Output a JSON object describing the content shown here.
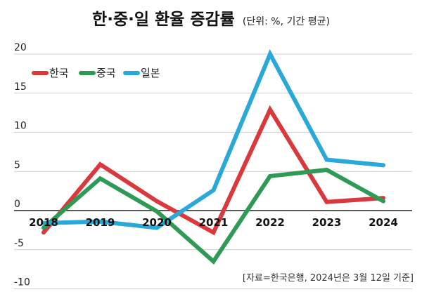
{
  "chart_data": {
    "type": "line",
    "title": "한·중·일 환율 증감률",
    "subtitle": "(단위: %, 기간 평균)",
    "source": "[자료=한국은행, 2024년은 3월 12일 기준]",
    "x": [
      "2018",
      "2019",
      "2020",
      "2021",
      "2022",
      "2023",
      "2024"
    ],
    "ylim": [
      -10,
      20
    ],
    "yticks": [
      20,
      15,
      10,
      5,
      0,
      -5,
      -10
    ],
    "ytick_labels": [
      "20",
      "15",
      "10",
      "5",
      "0",
      "-5",
      "-10"
    ],
    "grid": true,
    "legend_position": "top-left",
    "series": [
      {
        "name": "한국",
        "color": "#d9393c",
        "values": [
          -2.8,
          5.9,
          1.2,
          -2.8,
          12.9,
          1.1,
          1.6
        ]
      },
      {
        "name": "중국",
        "color": "#2f9a55",
        "values": [
          -2.2,
          4.1,
          -0.1,
          -6.5,
          4.4,
          5.2,
          1.2
        ]
      },
      {
        "name": "일본",
        "color": "#2aa8d8",
        "values": [
          -1.6,
          -1.4,
          -2.2,
          2.6,
          20.0,
          6.5,
          5.8
        ]
      }
    ]
  }
}
